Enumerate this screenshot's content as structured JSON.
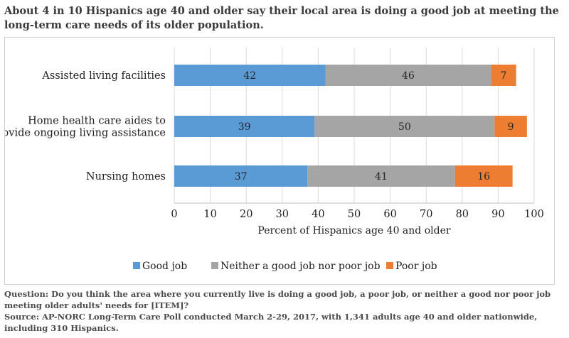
{
  "title": "About 4 in 10 Hispanics age 40 and older say their local area is doing a good job at meeting the long-term care needs of its older population.",
  "question": "Question: Do you think the area where you currently live is doing a good job, a poor job, or neither a good nor poor job meeting older adults' needs for [ITEM]?",
  "source": "Source: AP-NORC Long-Term Care Poll conducted March 2-29, 2017, with 1,341 adults age 40 and older nationwide, including 310 Hispanics.",
  "chart_data": {
    "type": "bar",
    "orientation": "horizontal",
    "stacked": true,
    "categories": [
      [
        "Assisted living facilities"
      ],
      [
        "Home health care aides to",
        "provide ongoing living assistance"
      ],
      [
        "Nursing homes"
      ]
    ],
    "series": [
      {
        "name": "Good job",
        "values": [
          42,
          39,
          37
        ],
        "color": "#5b9bd5"
      },
      {
        "name": "Neither a good job nor poor job",
        "values": [
          46,
          50,
          41
        ],
        "color": "#a5a5a5"
      },
      {
        "name": "Poor job",
        "values": [
          7,
          9,
          16
        ],
        "color": "#ed7d31"
      }
    ],
    "xlabel": "Percent of Hispanics age 40 and older",
    "xlim": [
      0,
      100
    ],
    "xticks": [
      0,
      10,
      20,
      30,
      40,
      50,
      60,
      70,
      80,
      90,
      100
    ],
    "grid": true,
    "legend": "bottom"
  }
}
